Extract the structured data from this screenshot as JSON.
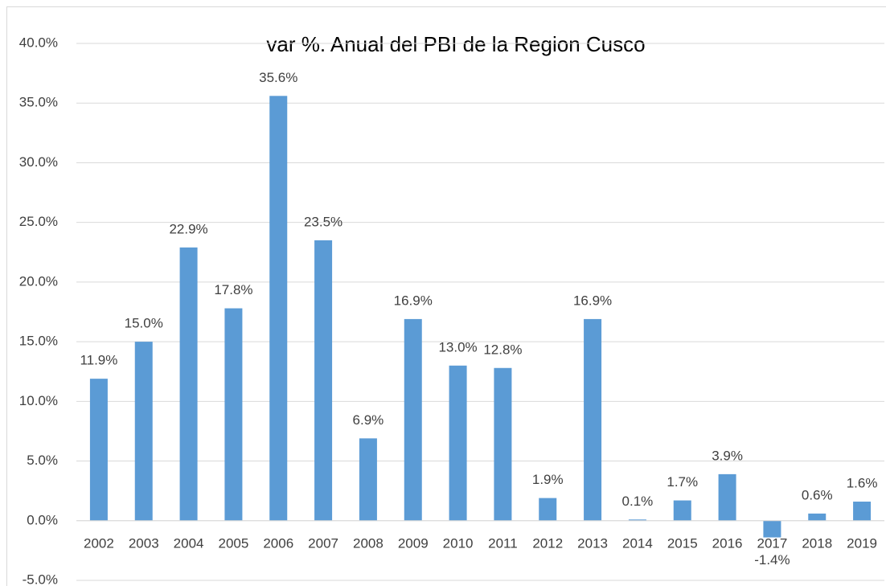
{
  "chart_data": {
    "type": "bar",
    "title": "var %. Anual del PBI de la Region Cusco",
    "categories": [
      "2002",
      "2003",
      "2004",
      "2005",
      "2006",
      "2007",
      "2008",
      "2009",
      "2010",
      "2011",
      "2012",
      "2013",
      "2014",
      "2015",
      "2016",
      "2017",
      "2018",
      "2019"
    ],
    "values": [
      11.9,
      15.0,
      22.9,
      17.8,
      35.6,
      23.5,
      6.9,
      16.9,
      13.0,
      12.8,
      1.9,
      16.9,
      0.1,
      1.7,
      3.9,
      -1.4,
      0.6,
      1.6
    ],
    "value_labels": [
      "11.9%",
      "15.0%",
      "22.9%",
      "17.8%",
      "35.6%",
      "23.5%",
      "6.9%",
      "16.9%",
      "13.0%",
      "12.8%",
      "1.9%",
      "16.9%",
      "0.1%",
      "1.7%",
      "3.9%",
      "-1.4%",
      "0.6%",
      "1.6%"
    ],
    "color": "#5b9bd5",
    "ylim": [
      -5,
      40
    ],
    "yticks": [
      {
        "value": -5,
        "label": "-5.0%"
      },
      {
        "value": 0,
        "label": "0.0%"
      },
      {
        "value": 5,
        "label": "5.0%"
      },
      {
        "value": 10,
        "label": "10.0%"
      },
      {
        "value": 15,
        "label": "15.0%"
      },
      {
        "value": 20,
        "label": "20.0%"
      },
      {
        "value": 25,
        "label": "25.0%"
      },
      {
        "value": 30,
        "label": "30.0%"
      },
      {
        "value": 35,
        "label": "35.0%"
      },
      {
        "value": 40,
        "label": "40.0%"
      }
    ],
    "grid": true
  }
}
